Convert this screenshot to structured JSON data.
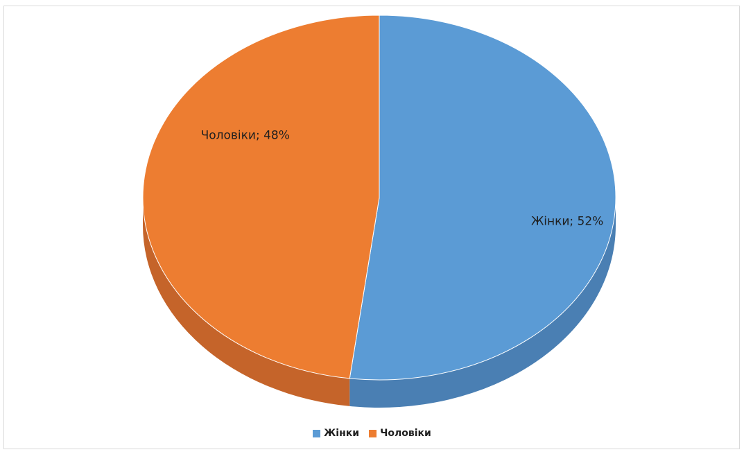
{
  "chart_data": {
    "type": "pie",
    "style": "3d",
    "categories": [
      "Жінки",
      "Чоловіки"
    ],
    "values": [
      52,
      48
    ],
    "unit": "%",
    "colors": [
      "#5b9bd5",
      "#ed7d31"
    ],
    "side_colors": [
      "#4a7fb3",
      "#c5642a"
    ],
    "data_labels": [
      "Жінки; 52%",
      "Чоловіки; 48%"
    ],
    "legend_position": "bottom",
    "legend": [
      {
        "label": "Жінки",
        "color": "#5b9bd5"
      },
      {
        "label": "Чоловіки",
        "color": "#ed7d31"
      }
    ]
  }
}
